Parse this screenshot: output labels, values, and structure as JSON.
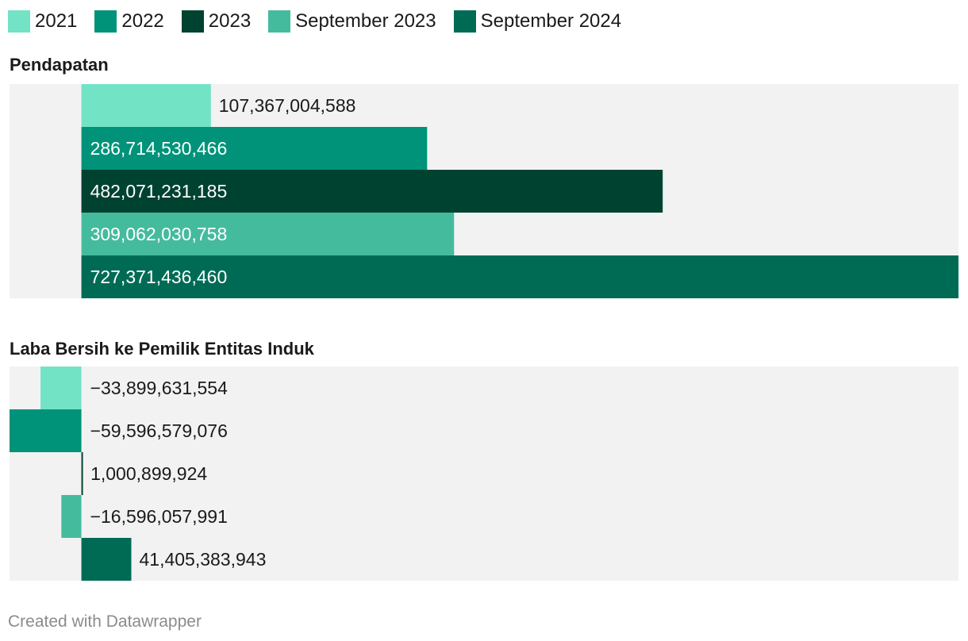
{
  "legend": [
    {
      "label": "2021",
      "color": "#73e3c6"
    },
    {
      "label": "2022",
      "color": "#00937a"
    },
    {
      "label": "2023",
      "color": "#004230"
    },
    {
      "label": "September 2023",
      "color": "#45bb9e"
    },
    {
      "label": "September 2024",
      "color": "#006b55"
    }
  ],
  "panels": [
    {
      "title": "Pendapatan"
    },
    {
      "title": "Laba Bersih ke Pemilik Entitas Induk"
    }
  ],
  "footer": "Created with Datawrapper",
  "chart_data": [
    {
      "type": "bar",
      "orientation": "horizontal",
      "title": "Pendapatan",
      "categories": [
        "2021",
        "2022",
        "2023",
        "September 2023",
        "September 2024"
      ],
      "values": [
        107367004588,
        286714530466,
        482071231185,
        309062030758,
        727371436460
      ],
      "labels": [
        "107,367,004,588",
        "286,714,530,466",
        "482,071,231,185",
        "309,062,030,758",
        "727,371,436,460"
      ],
      "colors": [
        "#73e3c6",
        "#00937a",
        "#004230",
        "#45bb9e",
        "#006b55"
      ],
      "xlim": [
        -59596579076,
        727371436460
      ],
      "grid": false,
      "legend_position": "top-left"
    },
    {
      "type": "bar",
      "orientation": "horizontal",
      "title": "Laba Bersih ke Pemilik Entitas Induk",
      "categories": [
        "2021",
        "2022",
        "2023",
        "September 2023",
        "September 2024"
      ],
      "values": [
        -33899631554,
        -59596579076,
        1000899924,
        -16596057991,
        41405383943
      ],
      "labels": [
        "−33,899,631,554",
        "−59,596,579,076",
        "1,000,899,924",
        "−16,596,057,991",
        "41,405,383,943"
      ],
      "colors": [
        "#73e3c6",
        "#00937a",
        "#004230",
        "#45bb9e",
        "#006b55"
      ],
      "xlim": [
        -59596579076,
        727371436460
      ],
      "grid": false,
      "legend_position": "top-left"
    }
  ]
}
